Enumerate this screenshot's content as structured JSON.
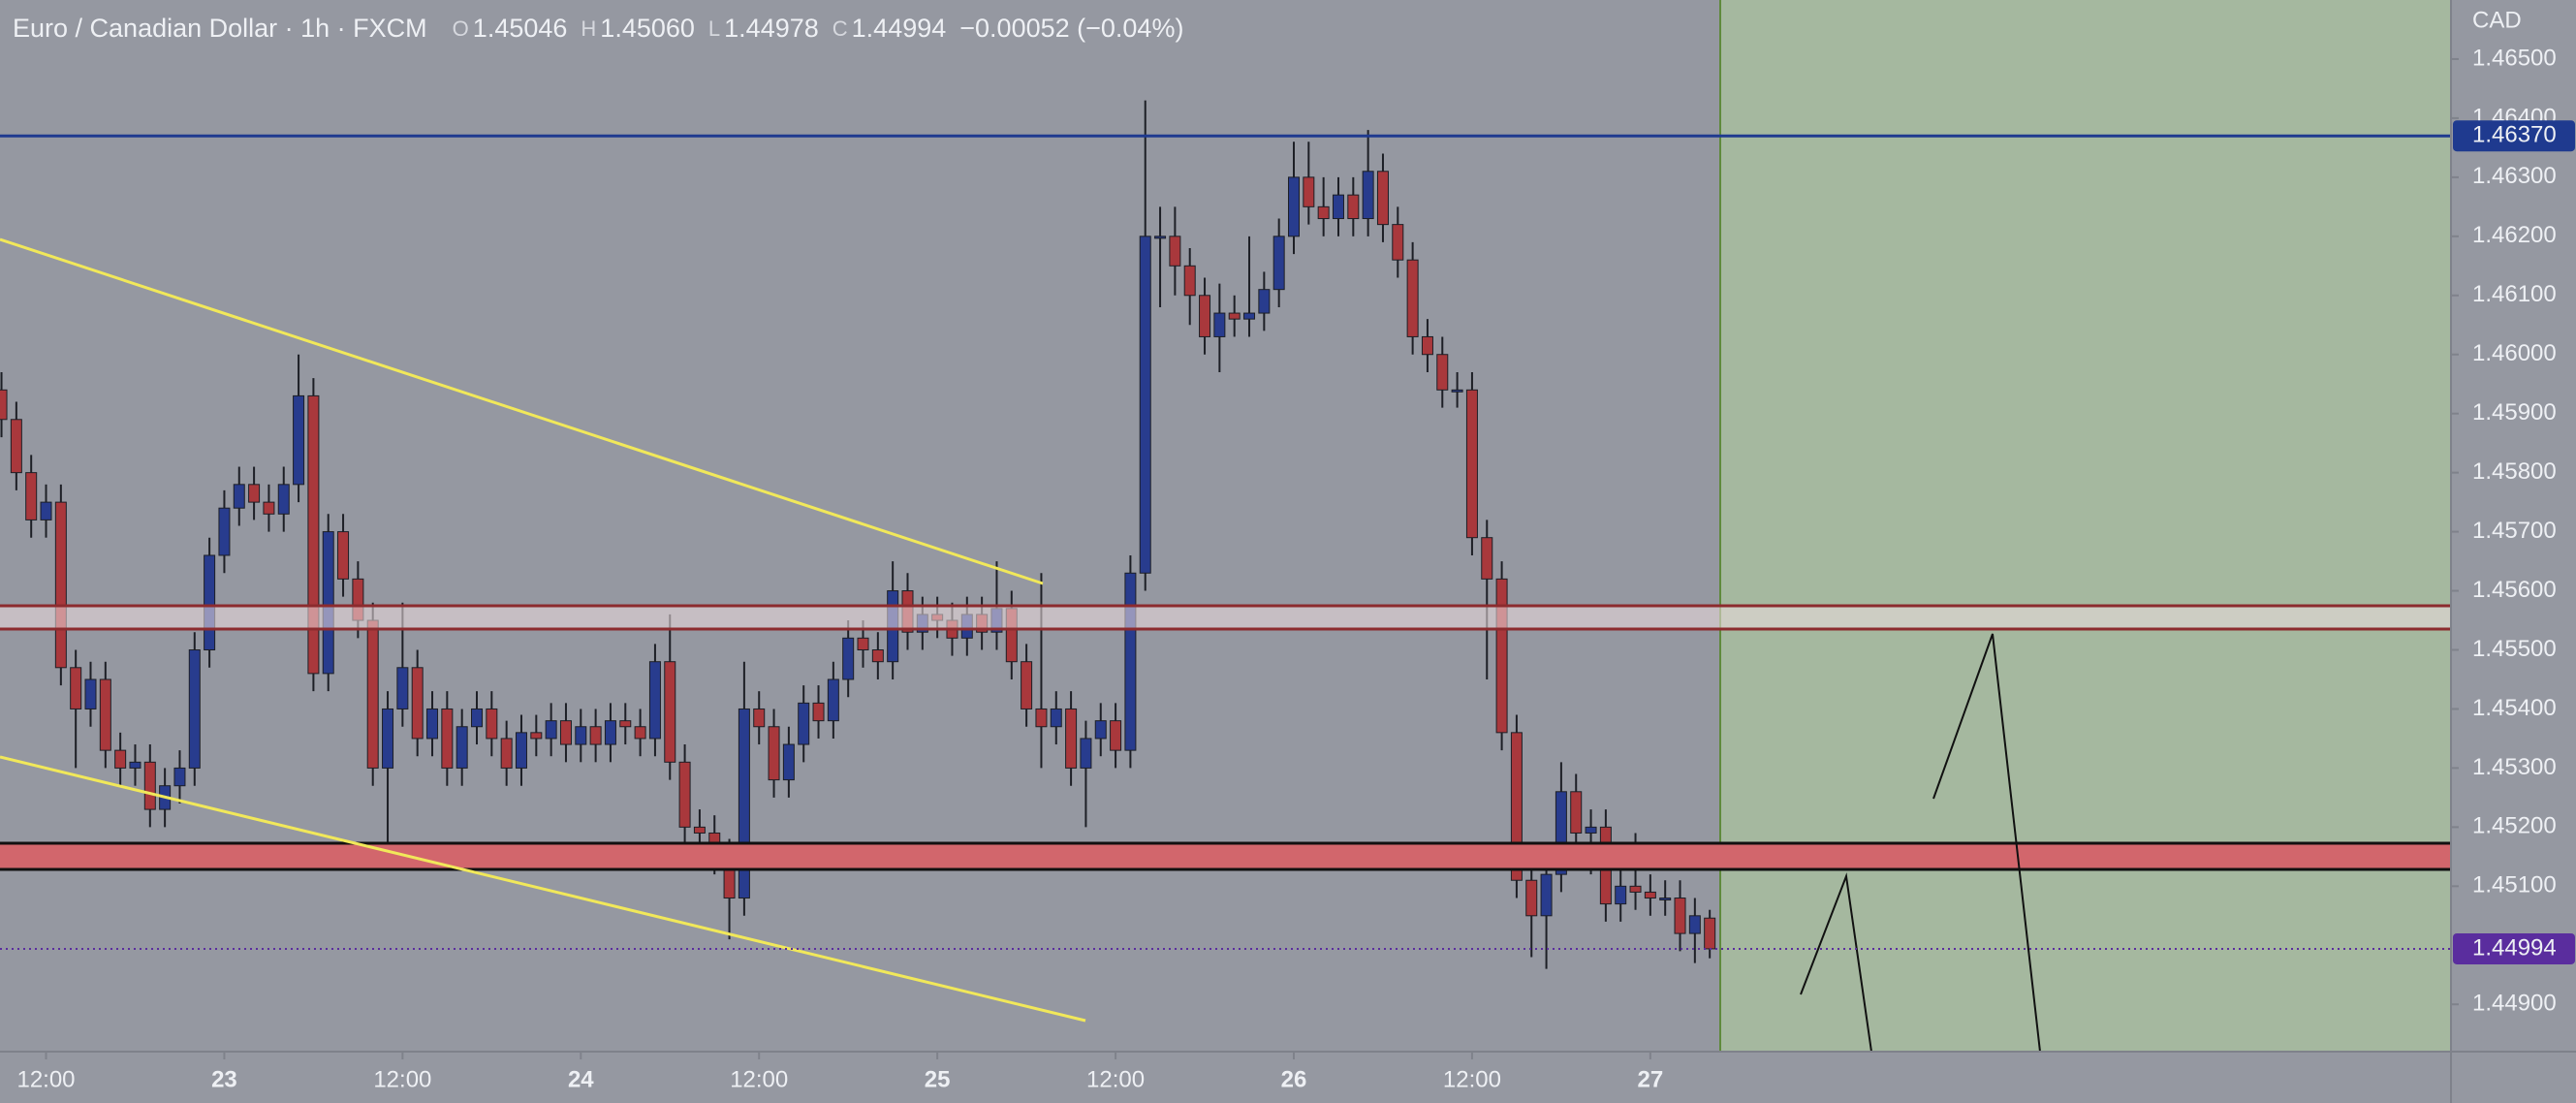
{
  "chart_data": {
    "type": "candlestick",
    "title": "Euro / Canadian Dollar · 1h · FXCM",
    "header": [
      {
        "letter": "O",
        "value": "1.45046"
      },
      {
        "letter": "H",
        "value": "1.45060"
      },
      {
        "letter": "L",
        "value": "1.44978"
      },
      {
        "letter": "C",
        "value": "1.44994"
      }
    ],
    "change": "−0.00052 (−0.04%)",
    "currency": "CAD",
    "up_color": "#283c8e",
    "down_color": "#a9383c",
    "x": [
      9,
      10,
      11,
      12,
      13,
      14,
      15,
      16,
      17,
      18,
      19,
      20,
      21,
      22,
      23,
      24,
      25,
      26,
      27,
      28,
      29,
      30,
      31,
      32,
      33,
      34,
      35,
      36,
      37,
      38,
      39,
      40,
      41,
      42,
      43,
      44,
      45,
      46,
      47,
      48,
      49,
      50,
      51,
      52,
      53,
      54,
      55,
      56,
      57,
      58,
      59,
      60,
      61,
      62,
      63,
      64,
      65,
      66,
      67,
      68,
      69,
      70,
      71,
      72,
      73,
      74,
      75,
      76,
      77,
      78,
      79,
      80,
      81,
      82,
      83,
      84,
      85,
      86,
      87,
      88,
      89,
      90,
      91,
      92,
      93,
      94,
      95,
      96,
      97,
      98,
      99,
      100,
      101,
      102,
      103,
      104,
      105,
      106,
      107,
      108,
      109,
      110,
      111,
      112,
      113,
      114,
      115,
      116,
      117,
      118,
      119,
      120,
      121,
      122,
      123,
      124
    ],
    "open": [
      1.4594,
      1.4589,
      1.458,
      1.4572,
      1.4575,
      1.4547,
      1.454,
      1.4545,
      1.4533,
      1.453,
      1.4531,
      1.4523,
      1.4527,
      1.453,
      1.455,
      1.4566,
      1.4574,
      1.4578,
      1.4575,
      1.4573,
      1.4578,
      1.4593,
      1.4546,
      1.457,
      1.4562,
      1.4555,
      1.453,
      1.454,
      1.4547,
      1.4535,
      1.454,
      1.453,
      1.4537,
      1.454,
      1.4535,
      1.453,
      1.4536,
      1.4535,
      1.4538,
      1.4534,
      1.4537,
      1.4534,
      1.4538,
      1.4537,
      1.4535,
      1.4548,
      1.4531,
      1.452,
      1.4519,
      1.4515,
      1.4508,
      1.454,
      1.4537,
      1.4528,
      1.4534,
      1.4541,
      1.4538,
      1.4545,
      1.4552,
      1.455,
      1.4548,
      1.456,
      1.4553,
      1.4556,
      1.4555,
      1.4552,
      1.4556,
      1.4553,
      1.4557,
      1.4548,
      1.454,
      1.4537,
      1.454,
      1.453,
      1.4535,
      1.4538,
      1.4533,
      1.4563,
      1.462,
      1.462,
      1.4615,
      1.461,
      1.4603,
      1.4607,
      1.4606,
      1.4607,
      1.4611,
      1.462,
      1.463,
      1.4625,
      1.4623,
      1.4627,
      1.4623,
      1.4631,
      1.4622,
      1.4616,
      1.4603,
      1.46,
      1.4594,
      1.4594,
      1.4569,
      1.4562,
      1.4536,
      1.4511,
      1.4505,
      1.4512,
      1.4526,
      1.4519,
      1.452,
      1.4507,
      1.451,
      1.4509,
      1.4508,
      1.4508,
      1.4502,
      1.45046
    ],
    "high": [
      1.4597,
      1.4592,
      1.4583,
      1.4578,
      1.4578,
      1.455,
      1.4548,
      1.4548,
      1.4536,
      1.4534,
      1.4534,
      1.453,
      1.4533,
      1.4553,
      1.4569,
      1.4577,
      1.4581,
      1.4581,
      1.4578,
      1.4581,
      1.46,
      1.4596,
      1.4573,
      1.4573,
      1.4565,
      1.4558,
      1.4543,
      1.4558,
      1.455,
      1.4543,
      1.4543,
      1.454,
      1.4543,
      1.4543,
      1.4538,
      1.4539,
      1.4539,
      1.4541,
      1.4541,
      1.454,
      1.454,
      1.4541,
      1.4541,
      1.454,
      1.4551,
      1.4556,
      1.4534,
      1.4523,
      1.4522,
      1.4518,
      1.4548,
      1.4543,
      1.454,
      1.4537,
      1.4544,
      1.4544,
      1.4548,
      1.4555,
      1.4555,
      1.4553,
      1.4565,
      1.4563,
      1.4559,
      1.4559,
      1.4558,
      1.4559,
      1.4559,
      1.4565,
      1.456,
      1.4551,
      1.4563,
      1.4543,
      1.4543,
      1.4538,
      1.4541,
      1.4541,
      1.4566,
      1.4643,
      1.4625,
      1.4625,
      1.4618,
      1.4613,
      1.4612,
      1.461,
      1.462,
      1.4614,
      1.4623,
      1.4636,
      1.4636,
      1.463,
      1.463,
      1.463,
      1.4638,
      1.4634,
      1.4625,
      1.4619,
      1.4606,
      1.4603,
      1.4597,
      1.4597,
      1.4572,
      1.4565,
      1.4539,
      1.4514,
      1.4515,
      1.4531,
      1.4529,
      1.4523,
      1.4523,
      1.4513,
      1.4519,
      1.4512,
      1.4511,
      1.4511,
      1.4508,
      1.4506
    ],
    "low": [
      1.4586,
      1.4577,
      1.4569,
      1.4569,
      1.4544,
      1.453,
      1.4537,
      1.453,
      1.4527,
      1.4527,
      1.452,
      1.452,
      1.4524,
      1.4527,
      1.4547,
      1.4563,
      1.4571,
      1.4572,
      1.457,
      1.457,
      1.4575,
      1.4543,
      1.4543,
      1.4559,
      1.4552,
      1.4527,
      1.4515,
      1.4537,
      1.4532,
      1.4532,
      1.4527,
      1.4527,
      1.4534,
      1.4532,
      1.4527,
      1.4527,
      1.4532,
      1.4532,
      1.4531,
      1.4531,
      1.4531,
      1.4531,
      1.4534,
      1.4532,
      1.4532,
      1.4528,
      1.4513,
      1.4516,
      1.4512,
      1.4501,
      1.4505,
      1.4534,
      1.4525,
      1.4525,
      1.4531,
      1.4535,
      1.4535,
      1.4542,
      1.4547,
      1.4545,
      1.4545,
      1.455,
      1.455,
      1.4552,
      1.4549,
      1.4549,
      1.455,
      1.455,
      1.4545,
      1.4537,
      1.453,
      1.4534,
      1.4527,
      1.452,
      1.4532,
      1.453,
      1.453,
      1.456,
      1.4608,
      1.461,
      1.4605,
      1.46,
      1.4597,
      1.4603,
      1.4603,
      1.4604,
      1.4608,
      1.4617,
      1.4622,
      1.462,
      1.462,
      1.462,
      1.462,
      1.4619,
      1.4613,
      1.46,
      1.4597,
      1.4591,
      1.4591,
      1.4566,
      1.4545,
      1.4533,
      1.4508,
      1.4498,
      1.4496,
      1.4509,
      1.4516,
      1.4512,
      1.4504,
      1.4504,
      1.4506,
      1.4505,
      1.4505,
      1.4499,
      1.4497,
      1.44978
    ],
    "close": [
      1.4589,
      1.458,
      1.4572,
      1.4575,
      1.4547,
      1.454,
      1.4545,
      1.4533,
      1.453,
      1.4531,
      1.4523,
      1.4527,
      1.453,
      1.455,
      1.4566,
      1.4574,
      1.4578,
      1.4575,
      1.4573,
      1.4578,
      1.4593,
      1.4546,
      1.457,
      1.4562,
      1.4555,
      1.453,
      1.454,
      1.4547,
      1.4535,
      1.454,
      1.453,
      1.4537,
      1.454,
      1.4535,
      1.453,
      1.4536,
      1.4535,
      1.4538,
      1.4534,
      1.4537,
      1.4534,
      1.4538,
      1.4537,
      1.4535,
      1.4548,
      1.4531,
      1.452,
      1.4519,
      1.4515,
      1.4508,
      1.454,
      1.4537,
      1.4528,
      1.4534,
      1.4541,
      1.4538,
      1.4545,
      1.4552,
      1.455,
      1.4548,
      1.456,
      1.4553,
      1.4556,
      1.4555,
      1.4552,
      1.4556,
      1.4553,
      1.4557,
      1.4548,
      1.454,
      1.4537,
      1.454,
      1.453,
      1.4535,
      1.4538,
      1.4533,
      1.4563,
      1.462,
      1.462,
      1.4615,
      1.461,
      1.4603,
      1.4607,
      1.4606,
      1.4607,
      1.4611,
      1.462,
      1.463,
      1.4625,
      1.4623,
      1.4627,
      1.4623,
      1.4631,
      1.4622,
      1.4616,
      1.4603,
      1.46,
      1.4594,
      1.4594,
      1.4569,
      1.4562,
      1.4536,
      1.4511,
      1.4505,
      1.4512,
      1.4526,
      1.4519,
      1.452,
      1.4507,
      1.451,
      1.4509,
      1.4508,
      1.4508,
      1.4502,
      1.4505,
      1.44994
    ],
    "xlim": [
      8.9,
      173.9
    ],
    "ylim": [
      1.4482,
      1.466
    ],
    "xticks": [
      {
        "value": 12,
        "label": "12:00"
      },
      {
        "value": 24,
        "label": "23"
      },
      {
        "value": 36,
        "label": "12:00"
      },
      {
        "value": 48,
        "label": "24"
      },
      {
        "value": 60,
        "label": "12:00"
      },
      {
        "value": 72,
        "label": "25"
      },
      {
        "value": 84,
        "label": "12:00"
      },
      {
        "value": 96,
        "label": "26"
      },
      {
        "value": 108,
        "label": "12:00"
      },
      {
        "value": 120,
        "label": "27"
      }
    ],
    "yticks": [
      {
        "value": 1.465,
        "label": "1.46500"
      },
      {
        "value": 1.464,
        "label": "1.46400"
      },
      {
        "value": 1.463,
        "label": "1.46300"
      },
      {
        "value": 1.462,
        "label": "1.46200"
      },
      {
        "value": 1.461,
        "label": "1.46100"
      },
      {
        "value": 1.46,
        "label": "1.46000"
      },
      {
        "value": 1.459,
        "label": "1.45900"
      },
      {
        "value": 1.458,
        "label": "1.45800"
      },
      {
        "value": 1.457,
        "label": "1.45700"
      },
      {
        "value": 1.456,
        "label": "1.45600"
      },
      {
        "value": 1.455,
        "label": "1.45500"
      },
      {
        "value": 1.454,
        "label": "1.45400"
      },
      {
        "value": 1.453,
        "label": "1.45300"
      },
      {
        "value": 1.452,
        "label": "1.45200"
      },
      {
        "value": 1.451,
        "label": "1.45100"
      },
      {
        "value": 1.449,
        "label": "1.44900"
      }
    ],
    "price_line": {
      "value": 1.4637,
      "label": "1.46370",
      "color": "#1f3a8f"
    },
    "last_price": {
      "value": 1.44994,
      "label": "1.44994",
      "color": "#5a2d9e"
    }
  }
}
